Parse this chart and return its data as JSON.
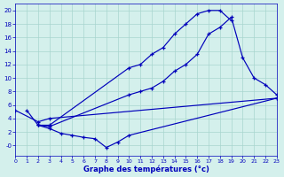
{
  "xlabel": "Graphe des températures (°c)",
  "background_color": "#d4f0ec",
  "grid_color": "#a8d5ce",
  "line_color": "#0000bb",
  "ylim": [
    -1.5,
    21
  ],
  "xlim": [
    0,
    23
  ],
  "yticks": [
    0,
    2,
    4,
    6,
    8,
    10,
    12,
    14,
    16,
    18,
    20
  ],
  "ytick_labels": [
    "-0",
    "2",
    "4",
    "6",
    "8",
    "10",
    "12",
    "14",
    "16",
    "18",
    "20"
  ],
  "xticks": [
    0,
    1,
    2,
    3,
    4,
    5,
    6,
    7,
    8,
    9,
    10,
    11,
    12,
    13,
    14,
    15,
    16,
    17,
    18,
    19,
    20,
    21,
    22,
    23
  ],
  "curve1_x": [
    2,
    3,
    10,
    11,
    12,
    13,
    14,
    15,
    16,
    17,
    18,
    19
  ],
  "curve1_y": [
    3.0,
    3.0,
    11.5,
    12.0,
    13.5,
    14.5,
    16.5,
    18.0,
    19.5,
    20.0,
    20.0,
    18.5
  ],
  "curve2_x": [
    1,
    2,
    3,
    10,
    11,
    12,
    13,
    14,
    15,
    16,
    17,
    18,
    19,
    20,
    21,
    22,
    23
  ],
  "curve2_y": [
    5.2,
    3.0,
    2.8,
    7.5,
    8.0,
    8.5,
    9.5,
    11.0,
    12.0,
    13.5,
    16.5,
    17.5,
    19.0,
    13.0,
    10.0,
    9.0,
    7.5
  ],
  "curve3_x": [
    0,
    2,
    3,
    23
  ],
  "curve3_y": [
    5.2,
    3.5,
    4.0,
    7.0
  ],
  "curve4_x": [
    2,
    3,
    4,
    5,
    6,
    7,
    8,
    9,
    10,
    23
  ],
  "curve4_y": [
    3.0,
    2.5,
    1.8,
    1.5,
    1.2,
    1.0,
    -0.3,
    0.5,
    1.5,
    7.0
  ]
}
